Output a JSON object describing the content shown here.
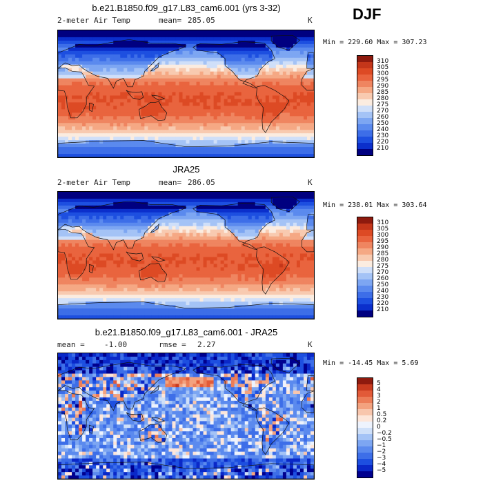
{
  "season": "DJF",
  "colors": {
    "abs_scale": [
      "#000080",
      "#0b2fcc",
      "#1d4fe0",
      "#3d6ee8",
      "#5b8aee",
      "#7da6f2",
      "#a4c3f6",
      "#cfdff9",
      "#fbece0",
      "#f8cab0",
      "#f5a884",
      "#ef8560",
      "#e9643e",
      "#dd4a24",
      "#c4361a",
      "#8e1a0e"
    ],
    "diff_scale": [
      "#00008f",
      "#0a28c8",
      "#1d4fe0",
      "#3d6ee8",
      "#5b8aee",
      "#7da6f2",
      "#a4c3f6",
      "#cfe0f9",
      "#eef3fd",
      "#fde6da",
      "#f8c6ad",
      "#f3a27f",
      "#ec7d58",
      "#e25a38",
      "#c93b1f",
      "#8e1a0e"
    ]
  },
  "panels": [
    {
      "title": "b.e21.B1850.f09_g17.L83_cam6.001 (yrs 3-32)",
      "variable": "2-meter Air Temp",
      "stat_label": "mean=",
      "stat_value": "285.05",
      "rmse_label": "",
      "rmse_value": "",
      "units": "K",
      "minmax": "Min = 229.60 Max = 307.23"
    },
    {
      "title": "JRA25",
      "variable": "2-meter Air Temp",
      "stat_label": "mean=",
      "stat_value": "286.05",
      "rmse_label": "",
      "rmse_value": "",
      "units": "K",
      "minmax": "Min = 238.01 Max = 303.64"
    },
    {
      "title": "b.e21.B1850.f09_g17.L83_cam6.001 - JRA25",
      "variable": "",
      "stat_label": "mean =",
      "stat_value": "-1.00",
      "rmse_label": "rmse =",
      "rmse_value": "2.27",
      "units": "K",
      "minmax": "Min = -14.45 Max =   5.69"
    }
  ],
  "chart_data": [
    {
      "type": "heatmap",
      "title": "b.e21.B1850.f09_g17.L83_cam6.001 (yrs 3-32)",
      "variable": "2-meter Air Temp",
      "units": "K",
      "mean": 285.05,
      "min": 229.6,
      "max": 307.23,
      "colorbar_levels": [
        310,
        305,
        300,
        295,
        290,
        285,
        280,
        275,
        270,
        260,
        250,
        240,
        230,
        220,
        210
      ]
    },
    {
      "type": "heatmap",
      "title": "JRA25",
      "variable": "2-meter Air Temp",
      "units": "K",
      "mean": 286.05,
      "min": 238.01,
      "max": 303.64,
      "colorbar_levels": [
        310,
        305,
        300,
        295,
        290,
        285,
        280,
        275,
        270,
        260,
        250,
        240,
        230,
        220,
        210
      ]
    },
    {
      "type": "heatmap",
      "title": "b.e21.B1850.f09_g17.L83_cam6.001 - JRA25",
      "units": "K",
      "mean": -1.0,
      "rmse": 2.27,
      "min": -14.45,
      "max": 5.69,
      "colorbar_levels": [
        "5",
        "4",
        "3",
        "2",
        "1",
        "0.5",
        "0.2",
        "0",
        "−0.2",
        "−0.5",
        "−1",
        "−2",
        "−3",
        "−4",
        "−5"
      ]
    }
  ]
}
